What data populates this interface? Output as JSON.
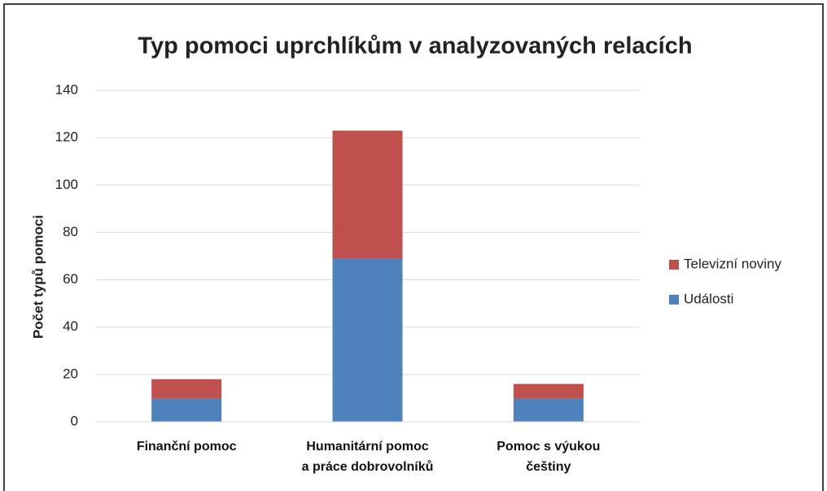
{
  "chart_data": {
    "type": "stacked_bar",
    "title": "Typ pomoci uprchlíkům v analyzovaných relacích",
    "y_label": "Počet typů pomoci",
    "categories": [
      "Finanční pomoc",
      "Humanitární pomoc\na práce dobrovolníků",
      "Pomoc s výukou\nčeštiny"
    ],
    "series": [
      {
        "name": "Události",
        "color": "#4f81bd",
        "values": [
          10,
          69,
          10
        ]
      },
      {
        "name": "Televizní noviny",
        "color": "#c0504d",
        "values": [
          8,
          54,
          6
        ]
      }
    ],
    "ylim": [
      0,
      140
    ],
    "yticks": [
      0,
      20,
      40,
      60,
      80,
      100,
      120,
      140
    ],
    "grid": true,
    "legend": "right"
  }
}
